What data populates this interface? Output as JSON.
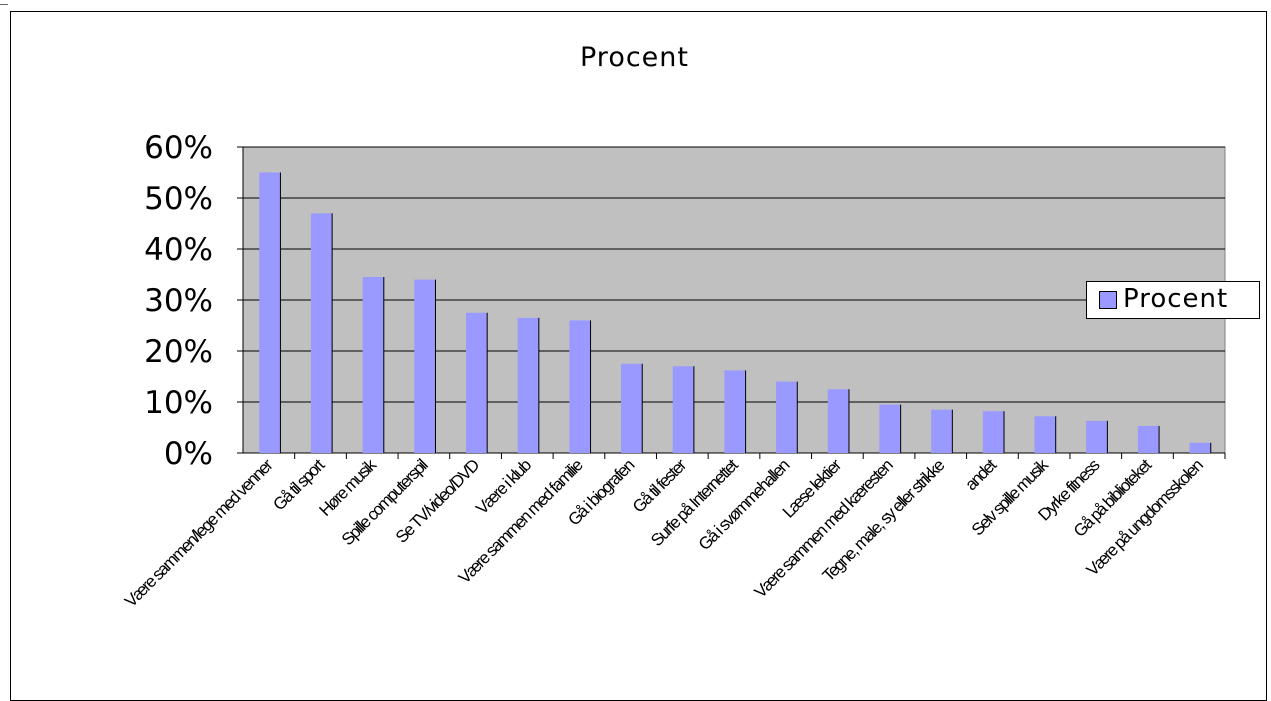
{
  "chart_data": {
    "type": "bar",
    "title": "Procent",
    "categories": [
      "Være sammen/lege med venner",
      "Gå til sport",
      "Høre musik",
      "Spille computerspil",
      "Se TV/video/DVD",
      "Være i klub",
      "Være sammen med familie",
      "Gå i biografen",
      "Gå til fester",
      "Surfe på Internettet",
      "Gå i svømmehallen",
      "Læse lektier",
      "Være sammen med kæresten",
      "Tegne, male, sy eller strikke",
      "andet",
      "Selv spille musik",
      "Dyrke fitness",
      "Gå på biblioteket",
      "Være på ungdomsskolen"
    ],
    "series": [
      {
        "name": "Procent",
        "values": [
          0.55,
          0.47,
          0.345,
          0.34,
          0.275,
          0.265,
          0.26,
          0.175,
          0.17,
          0.162,
          0.14,
          0.125,
          0.095,
          0.085,
          0.082,
          0.072,
          0.063,
          0.053,
          0.02
        ]
      }
    ],
    "yticks": [
      "0%",
      "10%",
      "20%",
      "30%",
      "40%",
      "50%",
      "60%"
    ],
    "ylim": [
      0,
      0.6
    ],
    "grid": true,
    "legend": "right",
    "colors": {
      "bar": "#9999ff",
      "plot_background": "#c0c0c0"
    }
  },
  "legend": {
    "label": "Procent"
  }
}
